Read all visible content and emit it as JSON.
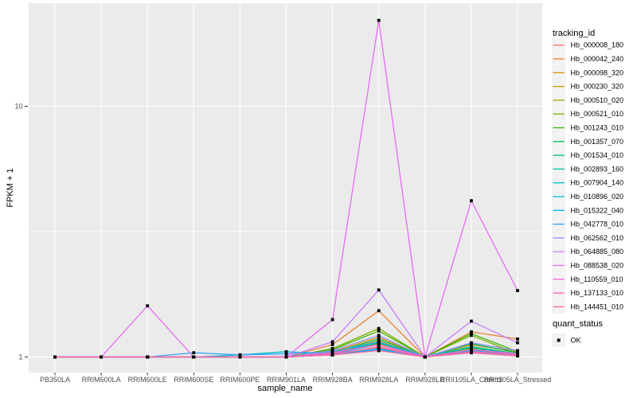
{
  "figure": {
    "background": "#FFFFFF",
    "panel_background": "#EBEBEB",
    "grid_color": "#FFFFFF",
    "tick_color": "#333333",
    "tick_label_color": "#4D4D4D",
    "text_color": "#000000",
    "legend_key_background": "#F2F2F2"
  },
  "chart_data": {
    "type": "line",
    "title": "",
    "xlabel": "sample_name",
    "ylabel": "FPKM + 1",
    "y_scale": "log10",
    "y_ticks": [
      1,
      10
    ],
    "y_minor_breaks": [
      3.1623
    ],
    "ylim": [
      0.867,
      25.8
    ],
    "grid": "on",
    "legend_position": "right",
    "categories": [
      "PB350LA",
      "RRIM600LA",
      "RRIM600LE",
      "RRIM600SE",
      "RRIM600PE",
      "RRIM901LA",
      "RRIM928BA",
      "RRIM928LA",
      "RRIM928LB",
      "RRII105LA_Control",
      "RRII105LA_Stressed"
    ],
    "series": [
      {
        "name": "Hb_000008_180",
        "color": "#F8766D",
        "values": [
          1,
          1,
          1,
          1,
          1,
          1,
          1.02,
          1.1,
          1,
          1.06,
          1.02
        ]
      },
      {
        "name": "Hb_000042_240",
        "color": "#EA8331",
        "values": [
          1,
          1,
          1,
          1,
          1,
          1,
          1.12,
          1.53,
          1,
          1.26,
          1.18
        ]
      },
      {
        "name": "Hb_000098_320",
        "color": "#D89000",
        "values": [
          1,
          1,
          1,
          1,
          1,
          1,
          1.05,
          1.2,
          1,
          1.12,
          1.05
        ]
      },
      {
        "name": "Hb_000230_320",
        "color": "#C09B00",
        "values": [
          1,
          1,
          1,
          1,
          1,
          1,
          1.04,
          1.16,
          1,
          1.1,
          1.03
        ]
      },
      {
        "name": "Hb_000510_020",
        "color": "#A3A500",
        "values": [
          1,
          1,
          1,
          1,
          1,
          1,
          1.03,
          1.13,
          1,
          1.08,
          1.02
        ]
      },
      {
        "name": "Hb_000521_010",
        "color": "#7CAE00",
        "values": [
          1,
          1,
          1,
          1,
          1,
          1,
          1.08,
          1.3,
          1,
          1.22,
          1.03
        ]
      },
      {
        "name": "Hb_001243_010",
        "color": "#39B600",
        "values": [
          1,
          1,
          1,
          1,
          1,
          1,
          1.07,
          1.27,
          1,
          1.24,
          1.05
        ]
      },
      {
        "name": "Hb_001357_070",
        "color": "#00BB4E",
        "values": [
          1,
          1,
          1,
          1,
          1,
          1,
          1.04,
          1.18,
          1,
          1.13,
          1.04
        ]
      },
      {
        "name": "Hb_001534_010",
        "color": "#00BF7D",
        "values": [
          1,
          1,
          1,
          1,
          1,
          1,
          1.03,
          1.15,
          1,
          1.1,
          1.03
        ]
      },
      {
        "name": "Hb_002893_160",
        "color": "#00C1A3",
        "values": [
          1,
          1,
          1,
          1,
          1,
          1,
          1.03,
          1.14,
          1,
          1.09,
          1.02
        ]
      },
      {
        "name": "Hb_007904_140",
        "color": "#00BFC4",
        "values": [
          1,
          1,
          1,
          1,
          1.02,
          1.05,
          1.03,
          1.12,
          1,
          1.06,
          1.02
        ]
      },
      {
        "name": "Hb_010896_020",
        "color": "#00BAE0",
        "values": [
          1,
          1,
          1,
          1,
          1,
          1,
          1.02,
          1.08,
          1,
          1.05,
          1.02
        ]
      },
      {
        "name": "Hb_015322_040",
        "color": "#00B0F6",
        "values": [
          1,
          1,
          1,
          1,
          1,
          1,
          1.02,
          1.07,
          1,
          1.04,
          1.01
        ]
      },
      {
        "name": "Hb_042778_010",
        "color": "#35A2FF",
        "values": [
          1,
          1,
          1,
          1.04,
          1.02,
          1.03,
          1.05,
          1.15,
          1,
          1.07,
          1.03
        ]
      },
      {
        "name": "Hb_062562_010",
        "color": "#9590FF",
        "values": [
          1,
          1,
          1,
          1,
          1,
          1,
          1.06,
          1.22,
          1,
          1.14,
          1.06
        ]
      },
      {
        "name": "Hb_064885_080",
        "color": "#C77CFF",
        "values": [
          1,
          1,
          1,
          1,
          1,
          1,
          1.15,
          1.85,
          1,
          1.39,
          1.14
        ]
      },
      {
        "name": "Hb_088538_020",
        "color": "#E76BF3",
        "values": [
          1,
          1,
          1.6,
          1,
          1,
          1,
          1.41,
          22,
          1,
          4.2,
          1.84
        ]
      },
      {
        "name": "Hb_110559_010",
        "color": "#FA62DB",
        "values": [
          1,
          1,
          1,
          1,
          1,
          1,
          1.04,
          1.12,
          1,
          1.07,
          1.03
        ]
      },
      {
        "name": "Hb_137133_010",
        "color": "#FF62BC",
        "values": [
          1,
          1,
          1,
          1,
          1,
          1,
          1.03,
          1.09,
          1,
          1.05,
          1.02
        ]
      },
      {
        "name": "Hb_144451_010",
        "color": "#FF6A98",
        "values": [
          1,
          1,
          1,
          1,
          1,
          1,
          1.02,
          1.06,
          1,
          1.04,
          1.01
        ]
      }
    ],
    "marker": {
      "shape": "square",
      "color": "#000000",
      "size": 3.8
    },
    "legend": {
      "tracking_title": "tracking_id",
      "quant_title": "quant_status",
      "quant_items": [
        {
          "label": "OK",
          "marker": "black-square"
        }
      ]
    }
  }
}
